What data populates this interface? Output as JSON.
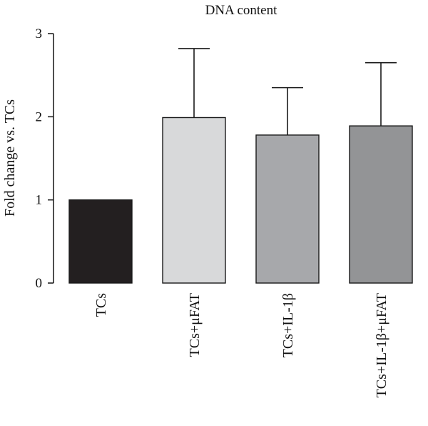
{
  "chart_data": {
    "type": "bar",
    "title": "DNA content",
    "xlabel": "",
    "ylabel": "Fold change vs. TCs",
    "ylim": [
      0,
      3
    ],
    "yticks": [
      "0",
      "1",
      "2",
      "3"
    ],
    "grid": false,
    "categories": [
      "TCs",
      "TCs+μFAT",
      "TCs+IL-1β",
      "TCs+IL-1β+μFAT"
    ],
    "values": [
      1.0,
      1.99,
      1.78,
      1.89
    ],
    "error_upper": [
      0,
      0.83,
      0.57,
      0.76
    ],
    "colors": [
      "#231f20",
      "#d8d9da",
      "#a7a8ab",
      "#939496"
    ]
  }
}
